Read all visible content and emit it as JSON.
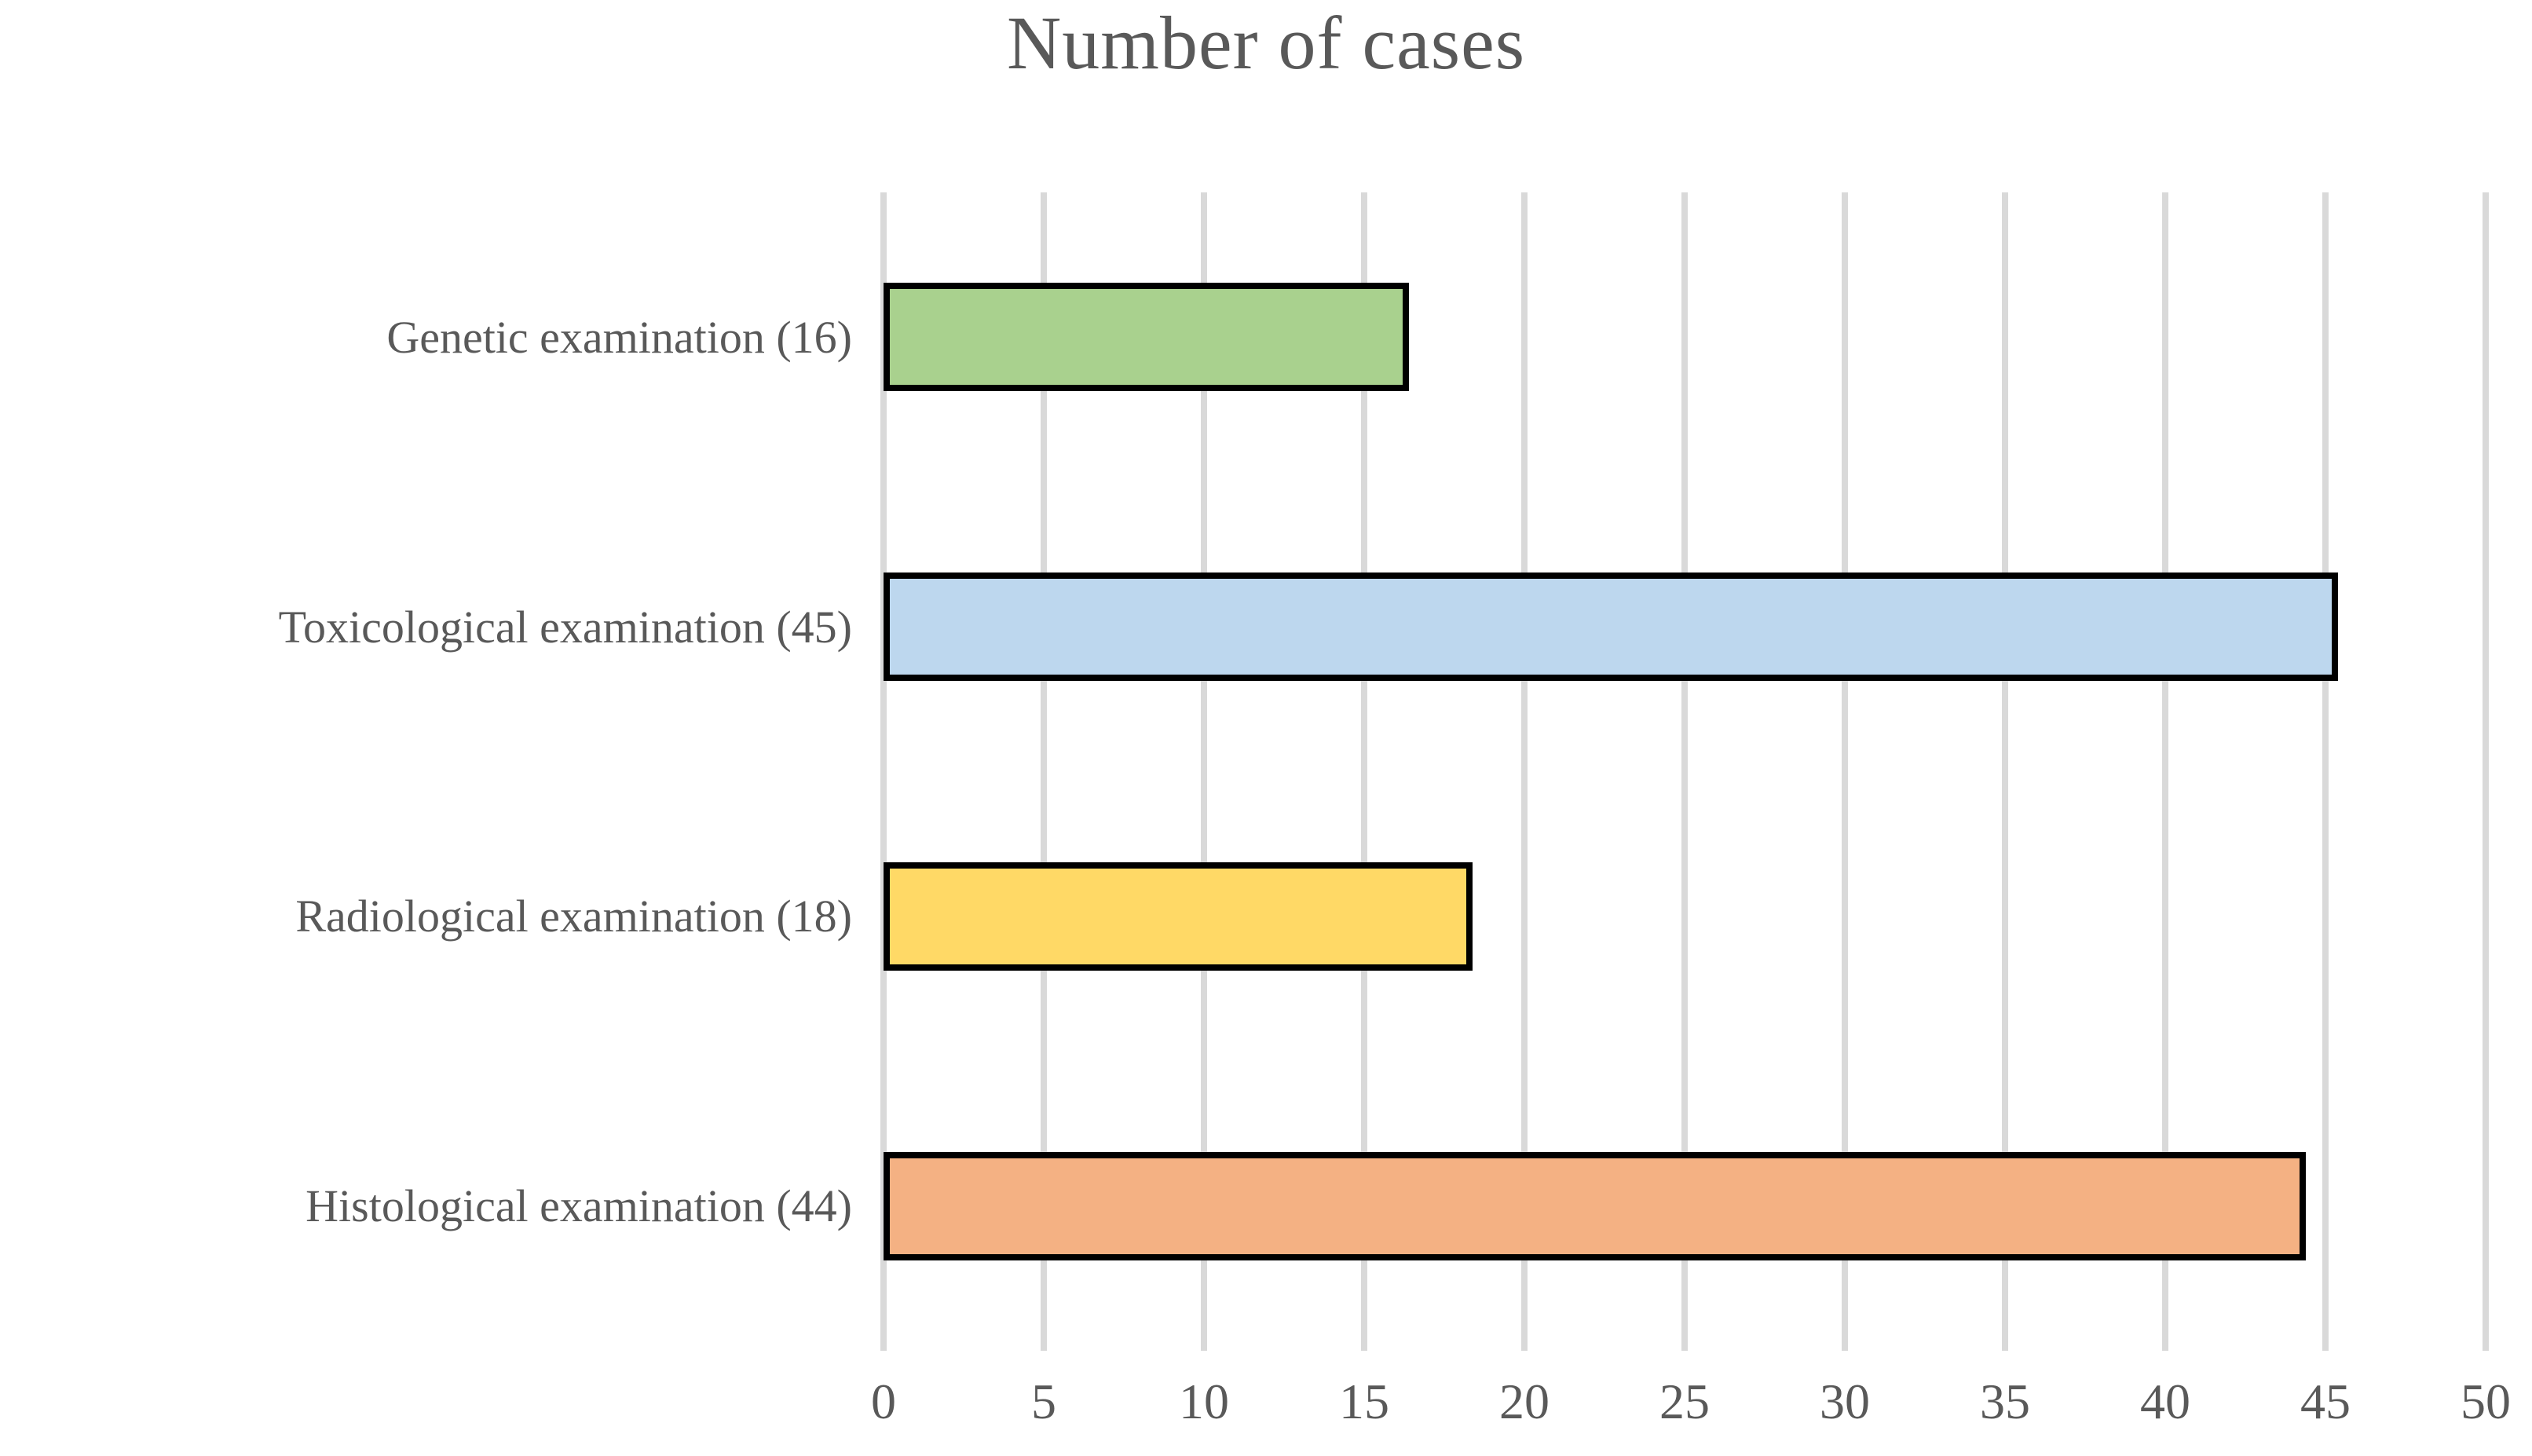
{
  "chart_data": {
    "type": "bar",
    "orientation": "horizontal",
    "title": "Number of cases",
    "categories": [
      "Genetic examination (16)",
      "Toxicological examination (45)",
      "Radiological examination (18)",
      "Histological examination (44)"
    ],
    "values": [
      16,
      45,
      18,
      44
    ],
    "bar_colors": [
      "#A9D18E",
      "#BDD7EE",
      "#FFD966",
      "#F4B183"
    ],
    "bar_border_color": "#000000",
    "bar_slugs": [
      "genetic-examination",
      "toxicological-examination",
      "radiological-examination",
      "histological-examination"
    ],
    "xlabel": "",
    "ylabel": "",
    "xlim": [
      0,
      50
    ],
    "xticks": [
      0,
      5,
      10,
      15,
      20,
      25,
      30,
      35,
      40,
      45,
      50
    ],
    "grid": true,
    "gridline_color": "#D9D9D9",
    "text_color": "#595959",
    "legend": "none",
    "background_color": "#FFFFFF"
  }
}
